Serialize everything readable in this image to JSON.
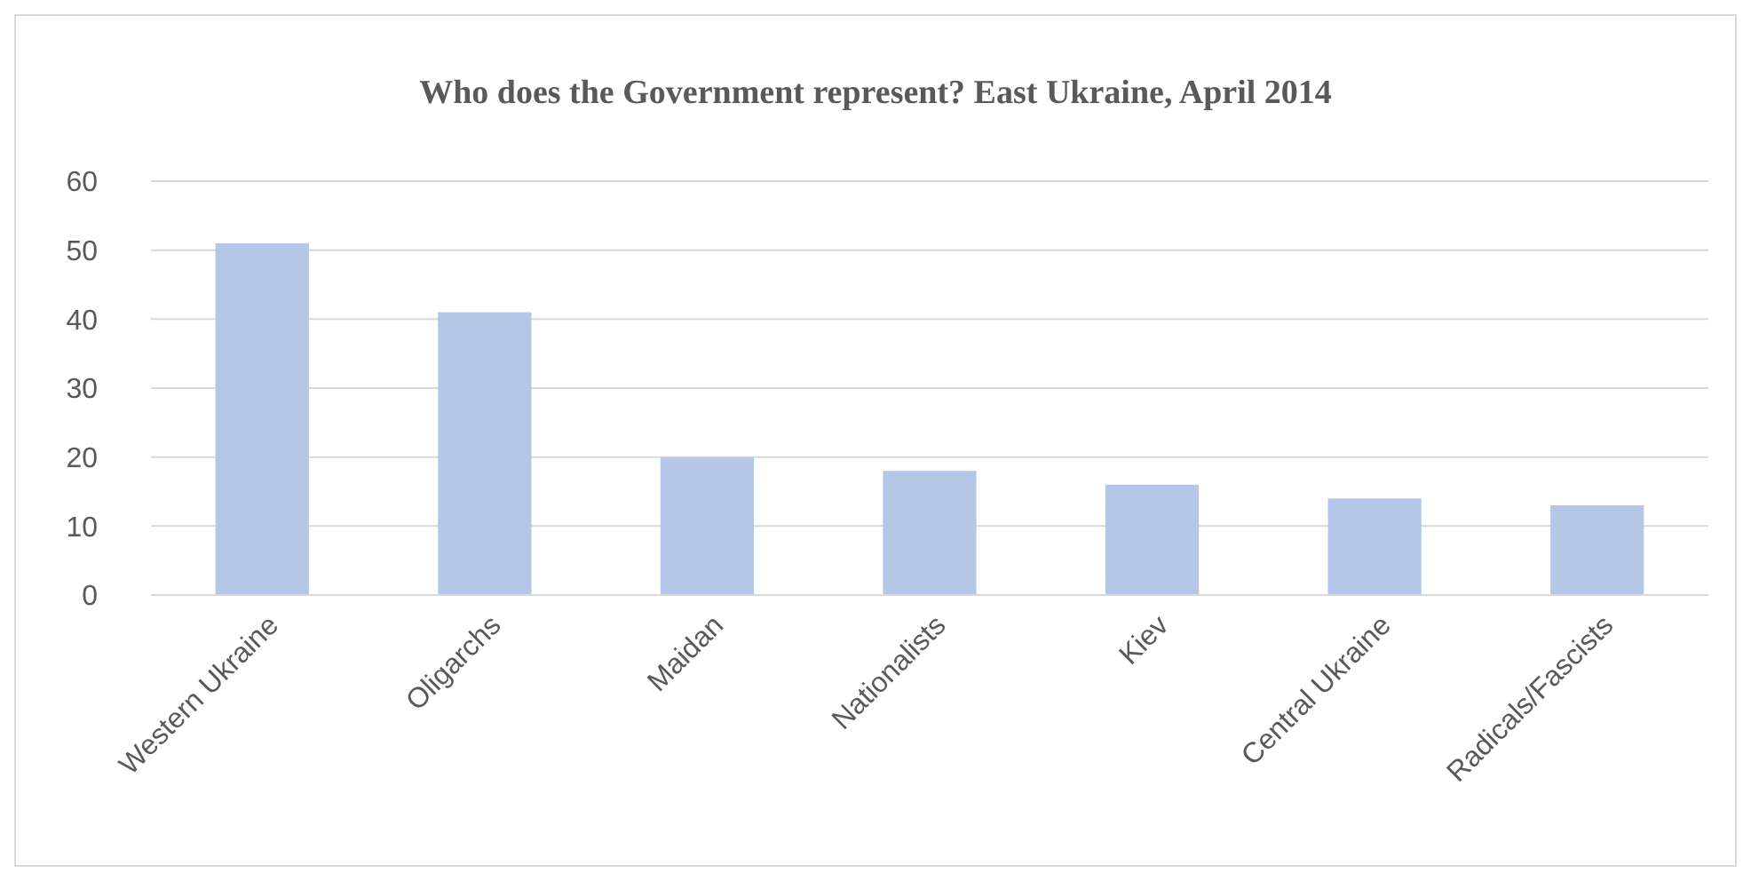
{
  "chart_data": {
    "type": "bar",
    "title": "Who does the Government represent? East Ukraine, April 2014",
    "categories": [
      "Western Ukraine",
      "Oligarchs",
      "Maidan",
      "Nationalists",
      "Kiev",
      "Central Ukraine",
      "Radicals/Fascists"
    ],
    "values": [
      51,
      41,
      20,
      18,
      16,
      14,
      13
    ],
    "color": "#b4c7e7",
    "ylim": [
      0,
      60
    ],
    "yticks": [
      0,
      10,
      20,
      30,
      40,
      50,
      60
    ],
    "grid": "y"
  }
}
